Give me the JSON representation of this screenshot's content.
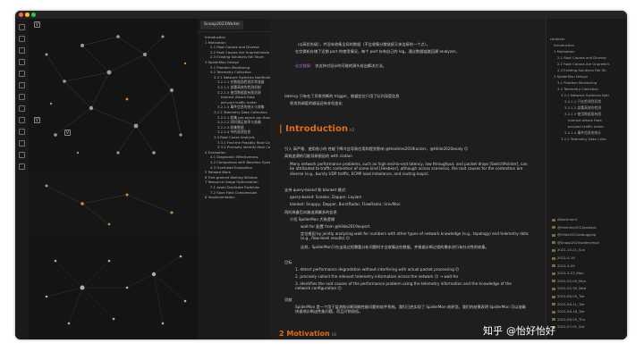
{
  "window": {
    "traffic": [
      "#ff5f57",
      "#febc2e",
      "#28c840"
    ]
  },
  "tab_title": "Snoop2023Waiter",
  "outline_left": [
    "Introduction",
    "1 Motivation",
    "2.1 Root Causes and Diverse",
    "2.2 Root Causes Are Unpredictable",
    "2.3 Existing Solutions Fall Short",
    "3 SpiderMon Design",
    "3.1 Problem Monitoring",
    "3.2 Telemetry Collection",
    "3.2.1 Network Switches Notification",
    "3.2.1.1 在数据面检测异常流量",
    "3.2.1.2 部署高效的检测机制",
    "3.2.1.3 使用数据面有限资源",
    "Interest Attack Rate",
    "per-port traffic meter",
    "3.2.1.4 事件信息的统计与收集",
    "3.2.2 Telemetry Data Collection",
    "3.2.2.1 收集 per-epoch per-flow",
    "3.2.2.2 同时满足效率与准确",
    "3.2.2.3 收集数据",
    "3.2.2.4 中的遥测信息",
    "3.3 Root Cause Analysis",
    "3.3.1 Find the Possibly Root Causes",
    "3.3.2 Precisely Identify Root Causes",
    "4 Evaluation",
    "4.1 Diagnostic Effectiveness",
    "4.2 Comparison with Baseline Systems",
    "4.3 Overhead Evaluation",
    "5 Related Work",
    "6 Fine-grained Waiting Window",
    "7 Resource Usage Optimization",
    "7.1 Avoid Duplicate Switches",
    "7.2 Save Field Compression",
    "8 Implementation"
  ],
  "main": {
    "top_para1": "（以高优先级），并没有收集全局的数据（不会收集分散链接又来连接的一个点）。",
    "top_para2": "在交换机存储了近期 port 的使用情况，每个 port 存有自己的 log，通过数据链路回溯 analyzer。",
    "link1": "论文链接：",
    "link1_note": "仅支持对设计的可能的源头给出解决方法。",
    "trigger_line": "latency 只有在了异常判断的 trigger，根据定位只用了队列深度信息",
    "trigger_line2": "原发到调度的顺延还有非但变化",
    "h_intro": "Introduction",
    "h_intro_tag": "H2",
    "bullets": [
      "引入 高严格、使用各小的 性能下降冷会导致应用和提交影响 @Hextime2019iarizer，@Hilde2020analy 😊",
      "高效追溯的可能导致根因的 with ciation",
      "Many network performance problems, such as high end-to-end latency, low throughput, and packet drops [SwitchPointer], can be attributed to traffic contention of some kind [Hexbear], although across scenarios, the root causes for the contention are diverse (e.g., bursty UDP traffic, ECMP load imbalance, and routing loops).",
      "支持 query-based 和 blanket 模式:",
      "query-based: Scealar, Dapper, Laylam",
      "blanket: Snappy, Dapper, BurstRadar, FlowRadar, UnivMon",
      "同时具备后向路追溯最多的信息",
      "介绍 SpiderMon 大致逻辑",
      "wait-for 配置 from @Hilde2019expert",
      "定位根因 by jointly analyzing wait-for numbers with other types of network knowledge (e.g., topology) and telemetry data (e.g., flow-level results) 😊",
      "这样，SpiderMon只在出现过程需要分析问题时才会收集这些数据，并根据诊断过程的需求进行有针对性的收集。"
    ],
    "goals_head": "目标",
    "goals": [
      "1. detect performance degradation without interfering with actual packet processing 😊",
      "2. precisely collect the relevant telemetry information across the network 😊 → wait-for",
      "3. identifies the root causes of the performance problem using the telemetry information and the knowledge of the network configuration 😊"
    ],
    "contrib_head": "贡献",
    "contrib": "SpiderMon 是一个用于监测和诊断网络性能问题的软件系统。我们已经实现了 SpiderMon 的原型。我们的结果表明 SpiderMon 可以准确快速地诊断出性能问题，而且开销很低。",
    "h_motiv": "2 Motivation",
    "h_motiv_tag": "H2"
  },
  "right_panel": {
    "outline": [
      "contents",
      "Introduction",
      "1 Motivation",
      "2.1 Root Causes and Diverse",
      "2.2 Root Causes Are Unpredict.",
      "2.3 Existing Solutions Fall Sh.",
      "3 SpiderMon Design",
      "3.1 Problem Monitoring",
      "3.2 Telemetry Collection",
      "3.2.1 Network Switches Noti",
      "3.2.1.1 只在检测到异常",
      "3.2.1.2 部署高效的检测",
      "3.2.1.3 使用数据面有限",
      "Interest Attack Rate",
      "per-port traffic meter",
      "3.2.1.4 事件信息的统计",
      "3.2.2 Telemetry Data Colle."
    ],
    "files": [
      "Attachment",
      "@Hextime2021kostant",
      "@Hilde2021debugging",
      "@Snoop2023waiter/mod",
      "2021-10-21_Sun",
      "2022-4-19",
      "2022-4-09",
      "2022-4-23_Mon",
      "2022-05-09_Mon",
      "2022-05-30_Wed",
      "2022-06-05_Tue",
      "2022-06-11_Tue",
      "2022-06-18_Tue",
      "2022-06-25_Thu",
      "2022-07-01_Sat"
    ]
  },
  "watermark": {
    "site": "知乎",
    "handle": "@怡好怡好"
  }
}
